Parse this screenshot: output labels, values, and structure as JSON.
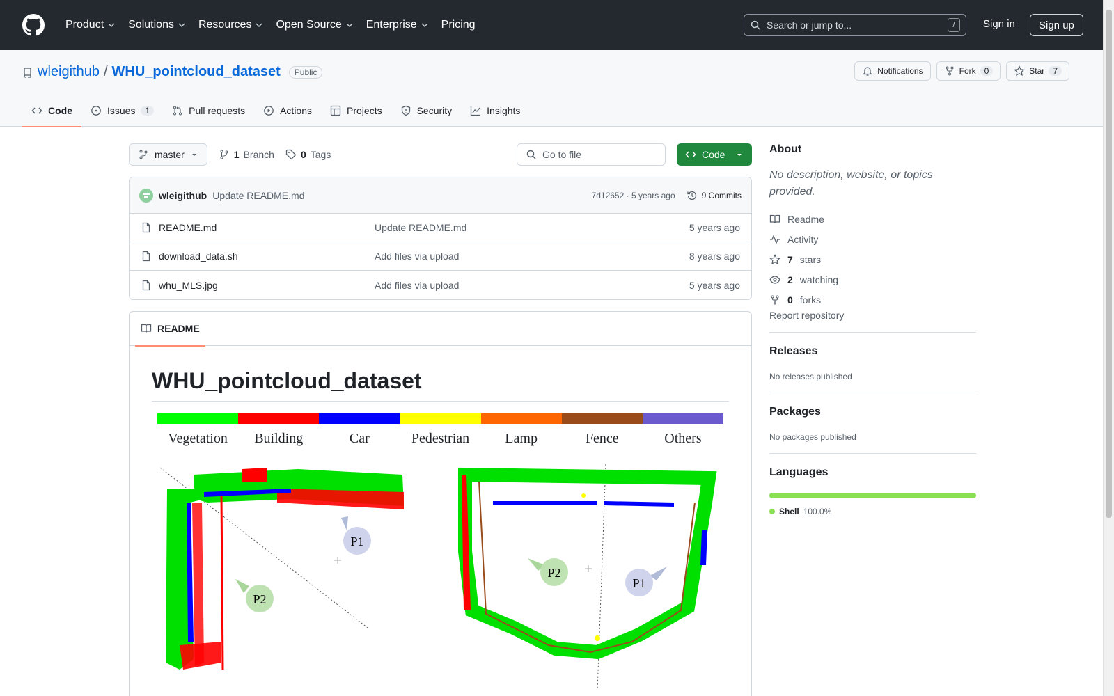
{
  "nav": {
    "items": [
      "Product",
      "Solutions",
      "Resources",
      "Open Source",
      "Enterprise",
      "Pricing"
    ],
    "search_placeholder": "Search or jump to...",
    "search_shortcut": "/",
    "signin": "Sign in",
    "signup": "Sign up"
  },
  "repo": {
    "owner": "wleigithub",
    "separator": "/",
    "name": "WHU_pointcloud_dataset",
    "visibility": "Public",
    "notifications": "Notifications",
    "fork_label": "Fork",
    "fork_count": "0",
    "star_label": "Star",
    "star_count": "7"
  },
  "tabs": [
    {
      "label": "Code"
    },
    {
      "label": "Issues",
      "count": "1"
    },
    {
      "label": "Pull requests"
    },
    {
      "label": "Actions"
    },
    {
      "label": "Projects"
    },
    {
      "label": "Security"
    },
    {
      "label": "Insights"
    }
  ],
  "toolbar": {
    "branch": "master",
    "branch_count": "1",
    "branch_label": "Branch",
    "tag_count": "0",
    "tag_label": "Tags",
    "goto_placeholder": "Go to file",
    "code_button": "Code"
  },
  "commit": {
    "author": "wleigithub",
    "message": "Update README.md",
    "meta": "7d12652 · 5 years ago",
    "commits_label": "9 Commits"
  },
  "files": [
    {
      "name": "README.md",
      "message": "Update README.md",
      "time": "5 years ago"
    },
    {
      "name": "download_data.sh",
      "message": "Add files via upload",
      "time": "8 years ago"
    },
    {
      "name": "whu_MLS.jpg",
      "message": "Add files via upload",
      "time": "5 years ago"
    }
  ],
  "readme": {
    "tab": "README",
    "title": "WHU_pointcloud_dataset",
    "legend": [
      {
        "label": "Vegetation",
        "color": "#00ff00"
      },
      {
        "label": "Building",
        "color": "#ff0000"
      },
      {
        "label": "Car",
        "color": "#0000ff"
      },
      {
        "label": "Pedestrian",
        "color": "#ffff00"
      },
      {
        "label": "Lamp",
        "color": "#ff6600"
      },
      {
        "label": "Fence",
        "color": "#994c1a"
      },
      {
        "label": "Others",
        "color": "#6a5acd"
      }
    ],
    "map_labels": {
      "p1": "P1",
      "p2": "P2"
    }
  },
  "sidebar": {
    "about_title": "About",
    "about_desc": "No description, website, or topics provided.",
    "readme": "Readme",
    "activity": "Activity",
    "stars_count": "7",
    "stars_label": "stars",
    "watching_count": "2",
    "watching_label": "watching",
    "forks_count": "0",
    "forks_label": "forks",
    "report": "Report repository",
    "releases_title": "Releases",
    "releases_sub": "No releases published",
    "packages_title": "Packages",
    "packages_sub": "No packages published",
    "languages_title": "Languages",
    "language_name": "Shell",
    "language_pct": "100.0%"
  }
}
